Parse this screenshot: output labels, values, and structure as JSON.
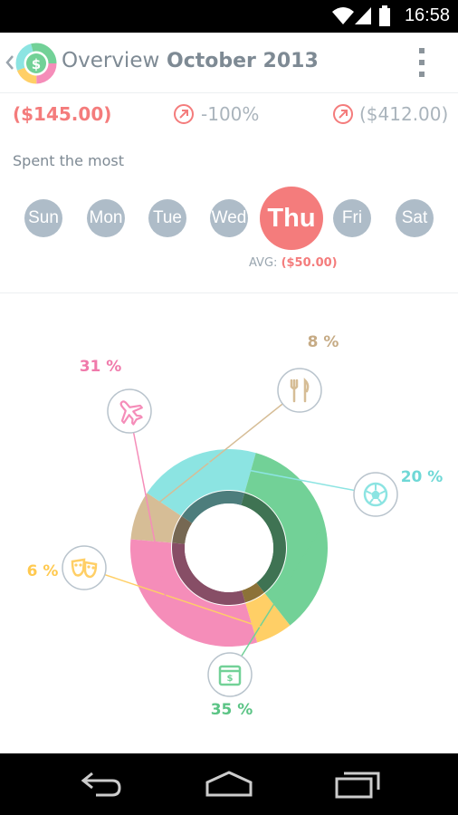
{
  "status_bar": {
    "time": "16:58"
  },
  "header": {
    "title": "Overview",
    "month": "October 2013"
  },
  "summary": [
    {
      "value": "($145.00)",
      "color": "#f47c7c",
      "has_icon": false
    },
    {
      "value": "-100%",
      "color": "#aab4bc",
      "icon": "trend-up-icon",
      "icon_color": "#f47c7c"
    },
    {
      "value": "($412.00)",
      "color": "#aab4bc",
      "icon": "trend-up-icon",
      "icon_color": "#f47c7c"
    }
  ],
  "spent_most": {
    "label": "Spent the most",
    "days": [
      "Sun",
      "Mon",
      "Tue",
      "Wed",
      "Thu",
      "Fri",
      "Sat"
    ],
    "active_day": "Thu",
    "avg_label": "AVG:",
    "avg_value": "($50.00)"
  },
  "chart_data": {
    "type": "pie",
    "style": "donut",
    "slices": [
      {
        "category": "Food",
        "icon": "fork-knife-icon",
        "value": 8,
        "label": "8 %",
        "color": "#d6bd96",
        "label_color": "#c6ab85"
      },
      {
        "category": "Sports",
        "icon": "soccer-ball-icon",
        "value": 20,
        "label": "20 %",
        "color": "#8ce4e2",
        "label_color": "#6fd8d6"
      },
      {
        "category": "Shopping",
        "icon": "shopping-bag-icon",
        "value": 35,
        "label": "35 %",
        "color": "#72d197",
        "label_color": "#5bc485"
      },
      {
        "category": "Entertainment",
        "icon": "theater-masks-icon",
        "value": 6,
        "label": "6 %",
        "color": "#ffcf66",
        "label_color": "#ffc94f"
      },
      {
        "category": "Travel",
        "icon": "airplane-icon",
        "value": 31,
        "label": "31 %",
        "color": "#f58db9",
        "label_color": "#f07aab"
      }
    ]
  }
}
